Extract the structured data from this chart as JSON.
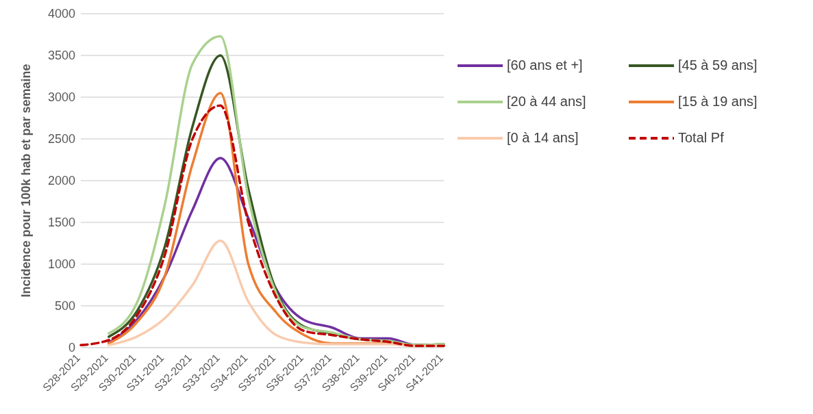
{
  "chart_data": {
    "type": "line",
    "ylabel": "Incidence pour 100k hab et par semaine",
    "categories": [
      "S28-2021",
      "S29-2021",
      "S30-2021",
      "S31-2021",
      "S32-2021",
      "S33-2021",
      "S34-2021",
      "S35-2021",
      "S36-2021",
      "S37-2021",
      "S38-2021",
      "S39-2021",
      "S40-2021",
      "S41-2021"
    ],
    "ylim": [
      0,
      4000
    ],
    "yticks": [
      0,
      500,
      1000,
      1500,
      2000,
      2500,
      3000,
      3500,
      4000
    ],
    "grid": "y",
    "legend": "top right",
    "marker": "none",
    "series": [
      {
        "name": "[60 ans et +]",
        "color": "#7030a0",
        "values": [
          null,
          60,
          330,
          850,
          1650,
          2270,
          1550,
          700,
          330,
          240,
          110,
          110,
          30,
          30
        ]
      },
      {
        "name": "[45 à 59 ans]",
        "color": "#375623",
        "values": [
          null,
          130,
          430,
          1200,
          2650,
          3500,
          1900,
          680,
          250,
          170,
          100,
          80,
          30,
          40
        ]
      },
      {
        "name": "[20 à 44 ans]",
        "color": "#a9d18e",
        "values": [
          null,
          170,
          530,
          1700,
          3400,
          3730,
          1800,
          650,
          240,
          180,
          100,
          80,
          30,
          40
        ]
      },
      {
        "name": "[15 à 19 ans]",
        "color": "#ed7d31",
        "values": [
          null,
          50,
          300,
          850,
          2200,
          3050,
          1000,
          420,
          150,
          50,
          50,
          50,
          20,
          20
        ]
      },
      {
        "name": "[0 à 14 ans]",
        "color": "#f8cbad",
        "values": [
          null,
          30,
          130,
          350,
          750,
          1280,
          550,
          150,
          60,
          40,
          40,
          40,
          20,
          20
        ]
      },
      {
        "name": "Total Pf",
        "color": "#c00000",
        "line_style": "dashed",
        "values": [
          30,
          90,
          380,
          1100,
          2500,
          2900,
          1500,
          600,
          200,
          150,
          100,
          70,
          20,
          20
        ]
      }
    ]
  }
}
